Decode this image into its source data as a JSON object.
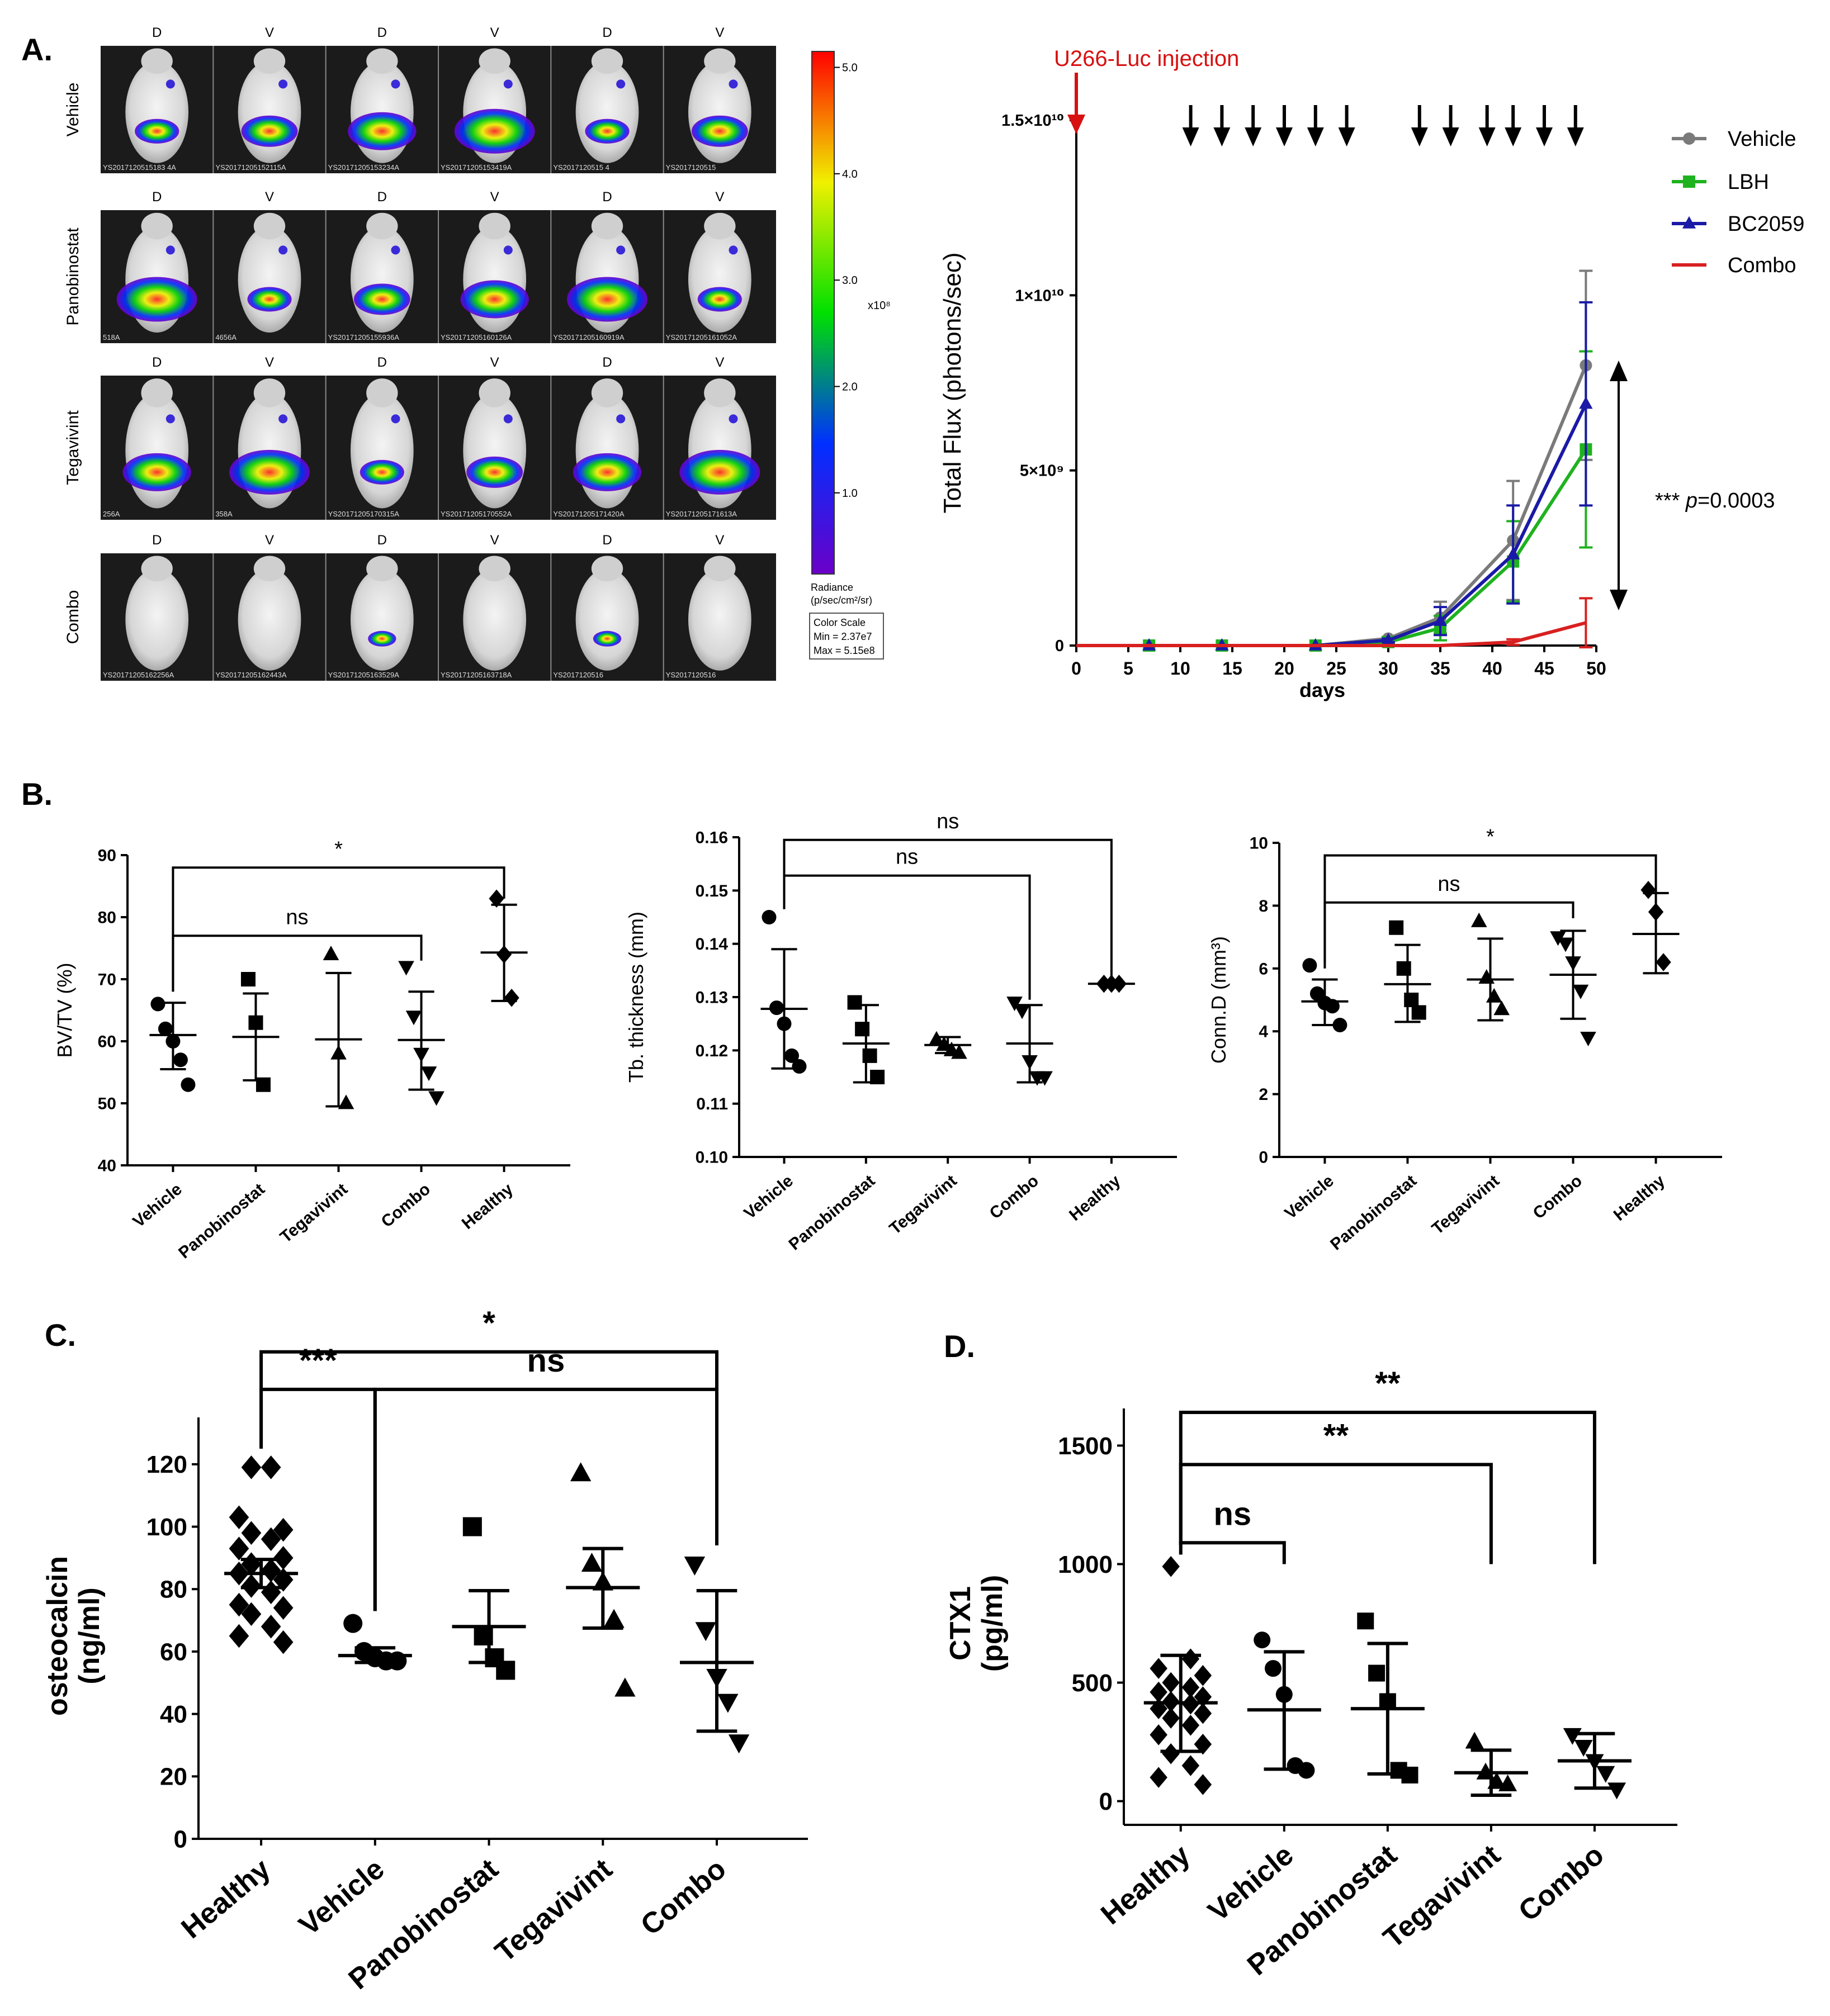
{
  "panel_labels": {
    "a": "A.",
    "b": "B.",
    "c": "C.",
    "d": "D."
  },
  "imaging": {
    "groups": [
      {
        "name": "Vehicle",
        "views": [
          "D",
          "V",
          "D",
          "V",
          "D",
          "V"
        ],
        "ids": [
          "YS2017120515183 4A",
          "YS20171205152115A",
          "YS20171205153234A",
          "YS20171205153419A",
          "YS2017120515 4",
          "YS2017120515"
        ]
      },
      {
        "name": "Panobinostat",
        "views": [
          "D",
          "V",
          "D",
          "V",
          "D",
          "V"
        ],
        "ids": [
          "518A",
          "4656A",
          "YS20171205155936A",
          "YS20171205160126A",
          "YS20171205160919A",
          "YS20171205161052A"
        ]
      },
      {
        "name": "Tegavivint",
        "views": [
          "D",
          "V",
          "D",
          "V",
          "D",
          "V"
        ],
        "ids": [
          "256A",
          "358A",
          "YS20171205170315A",
          "YS20171205170552A",
          "YS20171205171420A",
          "YS20171205171613A"
        ]
      },
      {
        "name": "Combo",
        "views": [
          "D",
          "V",
          "D",
          "V",
          "D",
          "V"
        ],
        "ids": [
          "YS20171205162256A",
          "YS20171205162443A",
          "YS20171205163529A",
          "YS20171205163718A",
          "YS2017120516",
          "YS2017120516"
        ]
      }
    ],
    "colorbar": {
      "ticks": [
        "5.0",
        "4.0",
        "3.0",
        "2.0",
        "1.0"
      ],
      "multiplier": "x10⁸",
      "unit_line1": "Radiance",
      "unit_line2": "(p/sec/cm²/sr)",
      "scale_title": "Color Scale",
      "scale_min": "Min = 2.37e7",
      "scale_max": "Max = 5.15e8",
      "colors": {
        "low": "#6a00c8",
        "mid1": "#0030ff",
        "mid2": "#00e000",
        "mid3": "#f0f000",
        "high": "#ff0000"
      }
    }
  },
  "chart_data": [
    {
      "id": "A",
      "type": "line",
      "title": "",
      "xlabel": "days",
      "ylabel": "Total Flux (photons/sec)",
      "xlim": [
        0,
        50
      ],
      "ylim": [
        0,
        15000000000
      ],
      "xticks": [
        0,
        5,
        10,
        15,
        20,
        25,
        30,
        35,
        40,
        45,
        50
      ],
      "yticks": [
        {
          "v": 0,
          "label": "0"
        },
        {
          "v": 5000000000,
          "label": "5×10⁹"
        },
        {
          "v": 10000000000,
          "label": "1×10¹⁰"
        },
        {
          "v": 15000000000,
          "label": "1.5×10¹⁰"
        }
      ],
      "x": [
        7,
        14,
        23,
        30,
        35,
        42,
        49
      ],
      "series": [
        {
          "name": "Vehicle",
          "color": "#7a7a7a",
          "marker": "circle",
          "values": [
            0,
            0,
            0,
            200000000,
            800000000,
            3000000000,
            8000000000
          ],
          "err": [
            0,
            0,
            0,
            50000000,
            450000000,
            1700000000,
            2700000000
          ]
        },
        {
          "name": "LBH",
          "color": "#1fb21f",
          "marker": "square",
          "values": [
            0,
            0,
            0,
            100000000,
            500000000,
            2400000000,
            5600000000
          ],
          "err": [
            0,
            0,
            0,
            40000000,
            350000000,
            1150000000,
            2800000000
          ]
        },
        {
          "name": "BC2059",
          "color": "#1a1aa6",
          "marker": "triangle",
          "values": [
            0,
            0,
            0,
            150000000,
            700000000,
            2600000000,
            6900000000
          ],
          "err": [
            0,
            0,
            0,
            50000000,
            400000000,
            1400000000,
            2900000000
          ]
        },
        {
          "name": "Combo",
          "color": "#d82020",
          "marker": "none",
          "values": [
            0,
            0,
            0,
            0,
            0,
            100000000,
            650000000
          ],
          "err": [
            0,
            0,
            0,
            0,
            0,
            80000000,
            700000000
          ]
        }
      ],
      "injection_label": "U266-Luc injection",
      "injection_day": 0,
      "treatment_days": [
        11,
        14,
        17,
        20,
        23,
        26,
        33,
        36,
        39.5,
        42,
        45,
        48
      ],
      "annotation": "*** ",
      "annotation_p": "p",
      "annotation_value": "=0.0003",
      "bracket_range": [
        8000000000,
        0
      ]
    },
    {
      "id": "B1",
      "type": "scatter",
      "ylabel": "BV/TV (%)",
      "ylim": [
        40,
        90
      ],
      "yticks": [
        40,
        50,
        60,
        70,
        80,
        90
      ],
      "categories": [
        "Vehicle",
        "Panobinostat",
        "Tegavivint",
        "Combo",
        "Healthy"
      ],
      "groups": [
        {
          "points": [
            66,
            62,
            60,
            57,
            53
          ],
          "mean": 61,
          "sd_low": 55.5,
          "sd_high": 66.2,
          "marker": "circle"
        },
        {
          "points": [
            70,
            63,
            53
          ],
          "mean": 60.7,
          "sd_low": 53.7,
          "sd_high": 67.7,
          "marker": "square"
        },
        {
          "points": [
            74,
            58,
            50
          ],
          "mean": 60.3,
          "sd_low": 49.5,
          "sd_high": 71,
          "marker": "triangle"
        },
        {
          "points": [
            72,
            64,
            58,
            55,
            51
          ],
          "mean": 60.2,
          "sd_low": 52.2,
          "sd_high": 68,
          "marker": "triangle-down"
        },
        {
          "points": [
            83,
            74,
            67
          ],
          "mean": 74.3,
          "sd_low": 66.5,
          "sd_high": 82,
          "marker": "diamond"
        }
      ],
      "brackets": [
        {
          "from": 0,
          "to": 4,
          "label": "*",
          "level": 88,
          "end_levels": [
            68,
            83
          ]
        },
        {
          "from": 0,
          "to": 3,
          "label": "ns",
          "level": 77,
          "end_levels": [
            68,
            73
          ]
        }
      ]
    },
    {
      "id": "B2",
      "type": "scatter",
      "ylabel": "Tb. thickness (mm)",
      "ylim": [
        0.1,
        0.16
      ],
      "yticks": [
        0.1,
        0.11,
        0.12,
        0.13,
        0.14,
        0.15,
        0.16
      ],
      "categories": [
        "Vehicle",
        "Panobinostat",
        "Tegavivint",
        "Combo",
        "Healthy"
      ],
      "groups": [
        {
          "points": [
            0.145,
            0.128,
            0.125,
            0.119,
            0.117
          ],
          "mean": 0.1278,
          "sd_low": 0.1166,
          "sd_high": 0.139,
          "marker": "circle"
        },
        {
          "points": [
            0.129,
            0.124,
            0.119,
            0.115
          ],
          "mean": 0.1213,
          "sd_low": 0.114,
          "sd_high": 0.1285,
          "marker": "square"
        },
        {
          "points": [
            0.122,
            0.121,
            0.12,
            0.1195
          ],
          "mean": 0.121,
          "sd_low": 0.1195,
          "sd_high": 0.1225,
          "marker": "triangle"
        },
        {
          "points": [
            0.129,
            0.1275,
            0.118,
            0.115,
            0.115
          ],
          "mean": 0.1213,
          "sd_low": 0.114,
          "sd_high": 0.1285,
          "marker": "triangle-down"
        },
        {
          "points": [
            0.1325,
            0.1325,
            0.1325
          ],
          "mean": 0.1325,
          "sd_low": 0.1322,
          "sd_high": 0.1328,
          "marker": "diamond"
        }
      ],
      "brackets": [
        {
          "from": 0,
          "to": 4,
          "label": "ns",
          "level": 0.1595,
          "end_levels": [
            0.149,
            0.1335
          ]
        },
        {
          "from": 0,
          "to": 3,
          "label": "ns",
          "level": 0.1528,
          "end_levels": [
            0.1465,
            0.1295
          ]
        }
      ]
    },
    {
      "id": "B3",
      "type": "scatter",
      "ylabel": "Conn.D (mm³)",
      "ylim": [
        0,
        10
      ],
      "yticks": [
        0,
        2,
        4,
        6,
        8,
        10
      ],
      "categories": [
        "Vehicle",
        "Panobinostat",
        "Tegavivint",
        "Combo",
        "Healthy"
      ],
      "groups": [
        {
          "points": [
            6.1,
            5.2,
            4.9,
            4.8,
            4.2
          ],
          "mean": 4.95,
          "sd_low": 4.2,
          "sd_high": 5.65,
          "marker": "circle"
        },
        {
          "points": [
            7.3,
            6.0,
            5.0,
            4.6
          ],
          "mean": 5.5,
          "sd_low": 4.3,
          "sd_high": 6.75,
          "marker": "square"
        },
        {
          "points": [
            7.5,
            5.7,
            5.1,
            4.7
          ],
          "mean": 5.65,
          "sd_low": 4.35,
          "sd_high": 6.95,
          "marker": "triangle"
        },
        {
          "points": [
            7.0,
            6.8,
            6.2,
            5.3,
            3.8
          ],
          "mean": 5.8,
          "sd_low": 4.4,
          "sd_high": 7.2,
          "marker": "triangle-down"
        },
        {
          "points": [
            8.5,
            7.8,
            6.2
          ],
          "mean": 7.1,
          "sd_low": 5.85,
          "sd_high": 8.4,
          "marker": "diamond"
        }
      ],
      "brackets": [
        {
          "from": 0,
          "to": 4,
          "label": "*",
          "level": 9.6,
          "end_levels": [
            6.2,
            8.4
          ]
        },
        {
          "from": 0,
          "to": 3,
          "label": "ns",
          "level": 8.1,
          "end_levels": [
            6.0,
            7.6
          ]
        }
      ]
    },
    {
      "id": "C",
      "type": "scatter",
      "ylabel": "osteocalcin",
      "ylabel2": "(ng/ml)",
      "ylim": [
        0,
        130
      ],
      "yticks": [
        0,
        20,
        40,
        60,
        80,
        100,
        120
      ],
      "categories": [
        "Healthy",
        "Vehicle",
        "Panobinostat",
        "Tegavivint",
        "Combo"
      ],
      "groups": [
        {
          "points": [
            119,
            119,
            103,
            99,
            98,
            96,
            93,
            90,
            88,
            86,
            85,
            83,
            81,
            79,
            75,
            74,
            72,
            68,
            65,
            63
          ],
          "mean": 85,
          "sd_low": 80.5,
          "sd_high": 89.5,
          "marker": "diamond"
        },
        {
          "points": [
            69,
            60,
            58,
            57,
            57
          ],
          "mean": 58.7,
          "sd_low": 56.5,
          "sd_high": 61.2,
          "marker": "circle"
        },
        {
          "points": [
            100,
            65,
            58,
            54
          ],
          "mean": 68,
          "sd_low": 56.5,
          "sd_high": 79.5,
          "marker": "square"
        },
        {
          "points": [
            117,
            88,
            82,
            70,
            48
          ],
          "mean": 80.5,
          "sd_low": 67.5,
          "sd_high": 93,
          "marker": "triangle"
        },
        {
          "points": [
            88,
            67,
            52,
            44,
            31
          ],
          "mean": 56.5,
          "sd_low": 34.5,
          "sd_high": 79.5,
          "marker": "triangle-down"
        }
      ],
      "brackets": [
        {
          "from": 0,
          "to": 4,
          "label": "*",
          "level": 156,
          "end_levels": [
            125,
            115
          ]
        },
        {
          "from": 0,
          "to": 1,
          "label": "***",
          "level": 144,
          "end_levels": [
            125,
            73
          ]
        },
        {
          "from": 1,
          "to": 4,
          "label": "ns",
          "level": 144,
          "end_levels": [
            73,
            94
          ]
        }
      ]
    },
    {
      "id": "D",
      "type": "scatter",
      "ylabel": "CTX1",
      "ylabel2": "(pg/ml)",
      "ylim": [
        -100,
        1600
      ],
      "yticks": [
        0,
        500,
        1000,
        1500
      ],
      "categories": [
        "Healthy",
        "Vehicle",
        "Panobinostat",
        "Tegavivint",
        "Combo"
      ],
      "groups": [
        {
          "points": [
            990,
            600,
            560,
            530,
            500,
            480,
            460,
            440,
            420,
            410,
            390,
            370,
            350,
            320,
            280,
            240,
            200,
            150,
            100,
            70
          ],
          "mean": 415,
          "sd_low": 210,
          "sd_high": 615,
          "marker": "diamond"
        },
        {
          "points": [
            680,
            560,
            450,
            150,
            130
          ],
          "mean": 385,
          "sd_low": 135,
          "sd_high": 630,
          "marker": "circle"
        },
        {
          "points": [
            760,
            540,
            420,
            130,
            110
          ],
          "mean": 390,
          "sd_low": 115,
          "sd_high": 665,
          "marker": "square"
        },
        {
          "points": [
            250,
            120,
            80,
            70
          ],
          "mean": 120,
          "sd_low": 25,
          "sd_high": 215,
          "marker": "triangle"
        },
        {
          "points": [
            280,
            230,
            170,
            120,
            50
          ],
          "mean": 170,
          "sd_low": 55,
          "sd_high": 285,
          "marker": "triangle-down"
        }
      ],
      "brackets": [
        {
          "from": 0,
          "to": 4,
          "label": "**",
          "level": 1640,
          "end_levels": [
            1080,
            1000
          ]
        },
        {
          "from": 0,
          "to": 3,
          "label": "**",
          "level": 1420,
          "end_levels": [
            1080,
            1000
          ]
        },
        {
          "from": 0,
          "to": 1,
          "label": "ns",
          "level": 1090,
          "end_levels": [
            1040,
            1000
          ]
        }
      ]
    }
  ]
}
